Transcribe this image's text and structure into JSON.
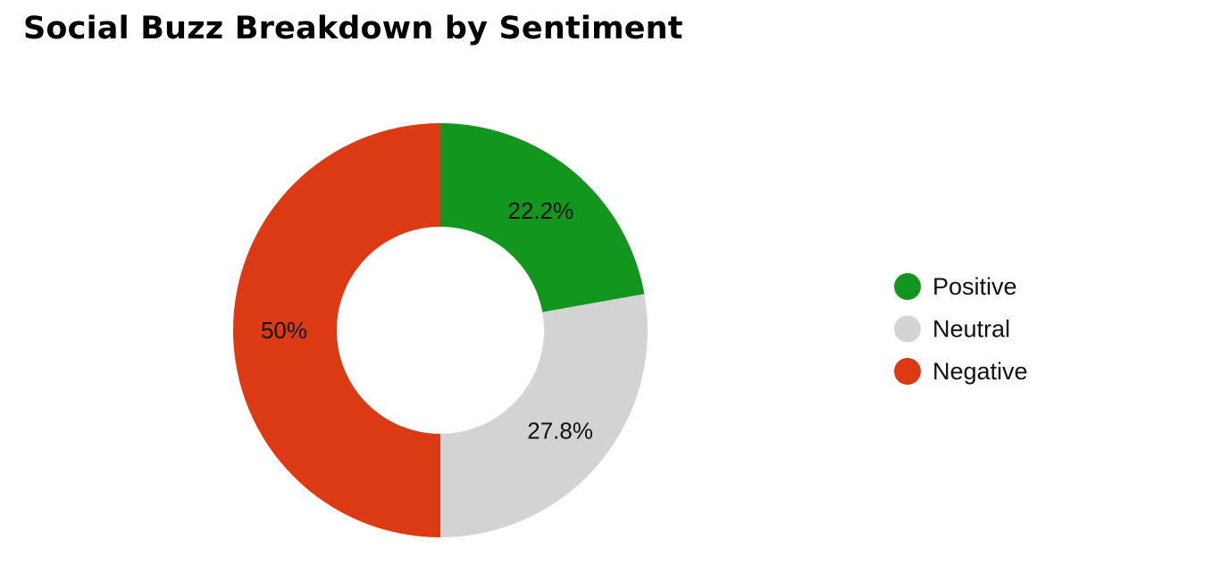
{
  "chart_data": {
    "type": "pie",
    "title": "Social Buzz Breakdown by Sentiment",
    "donut": true,
    "slices": [
      {
        "name": "Positive",
        "value": 22.2,
        "label": "22.2%",
        "color": "#13961e"
      },
      {
        "name": "Neutral",
        "value": 27.8,
        "label": "27.8%",
        "color": "#d3d3d3"
      },
      {
        "name": "Negative",
        "value": 50,
        "label": "50%",
        "color": "#dc3a14"
      }
    ],
    "legend_position": "right"
  }
}
